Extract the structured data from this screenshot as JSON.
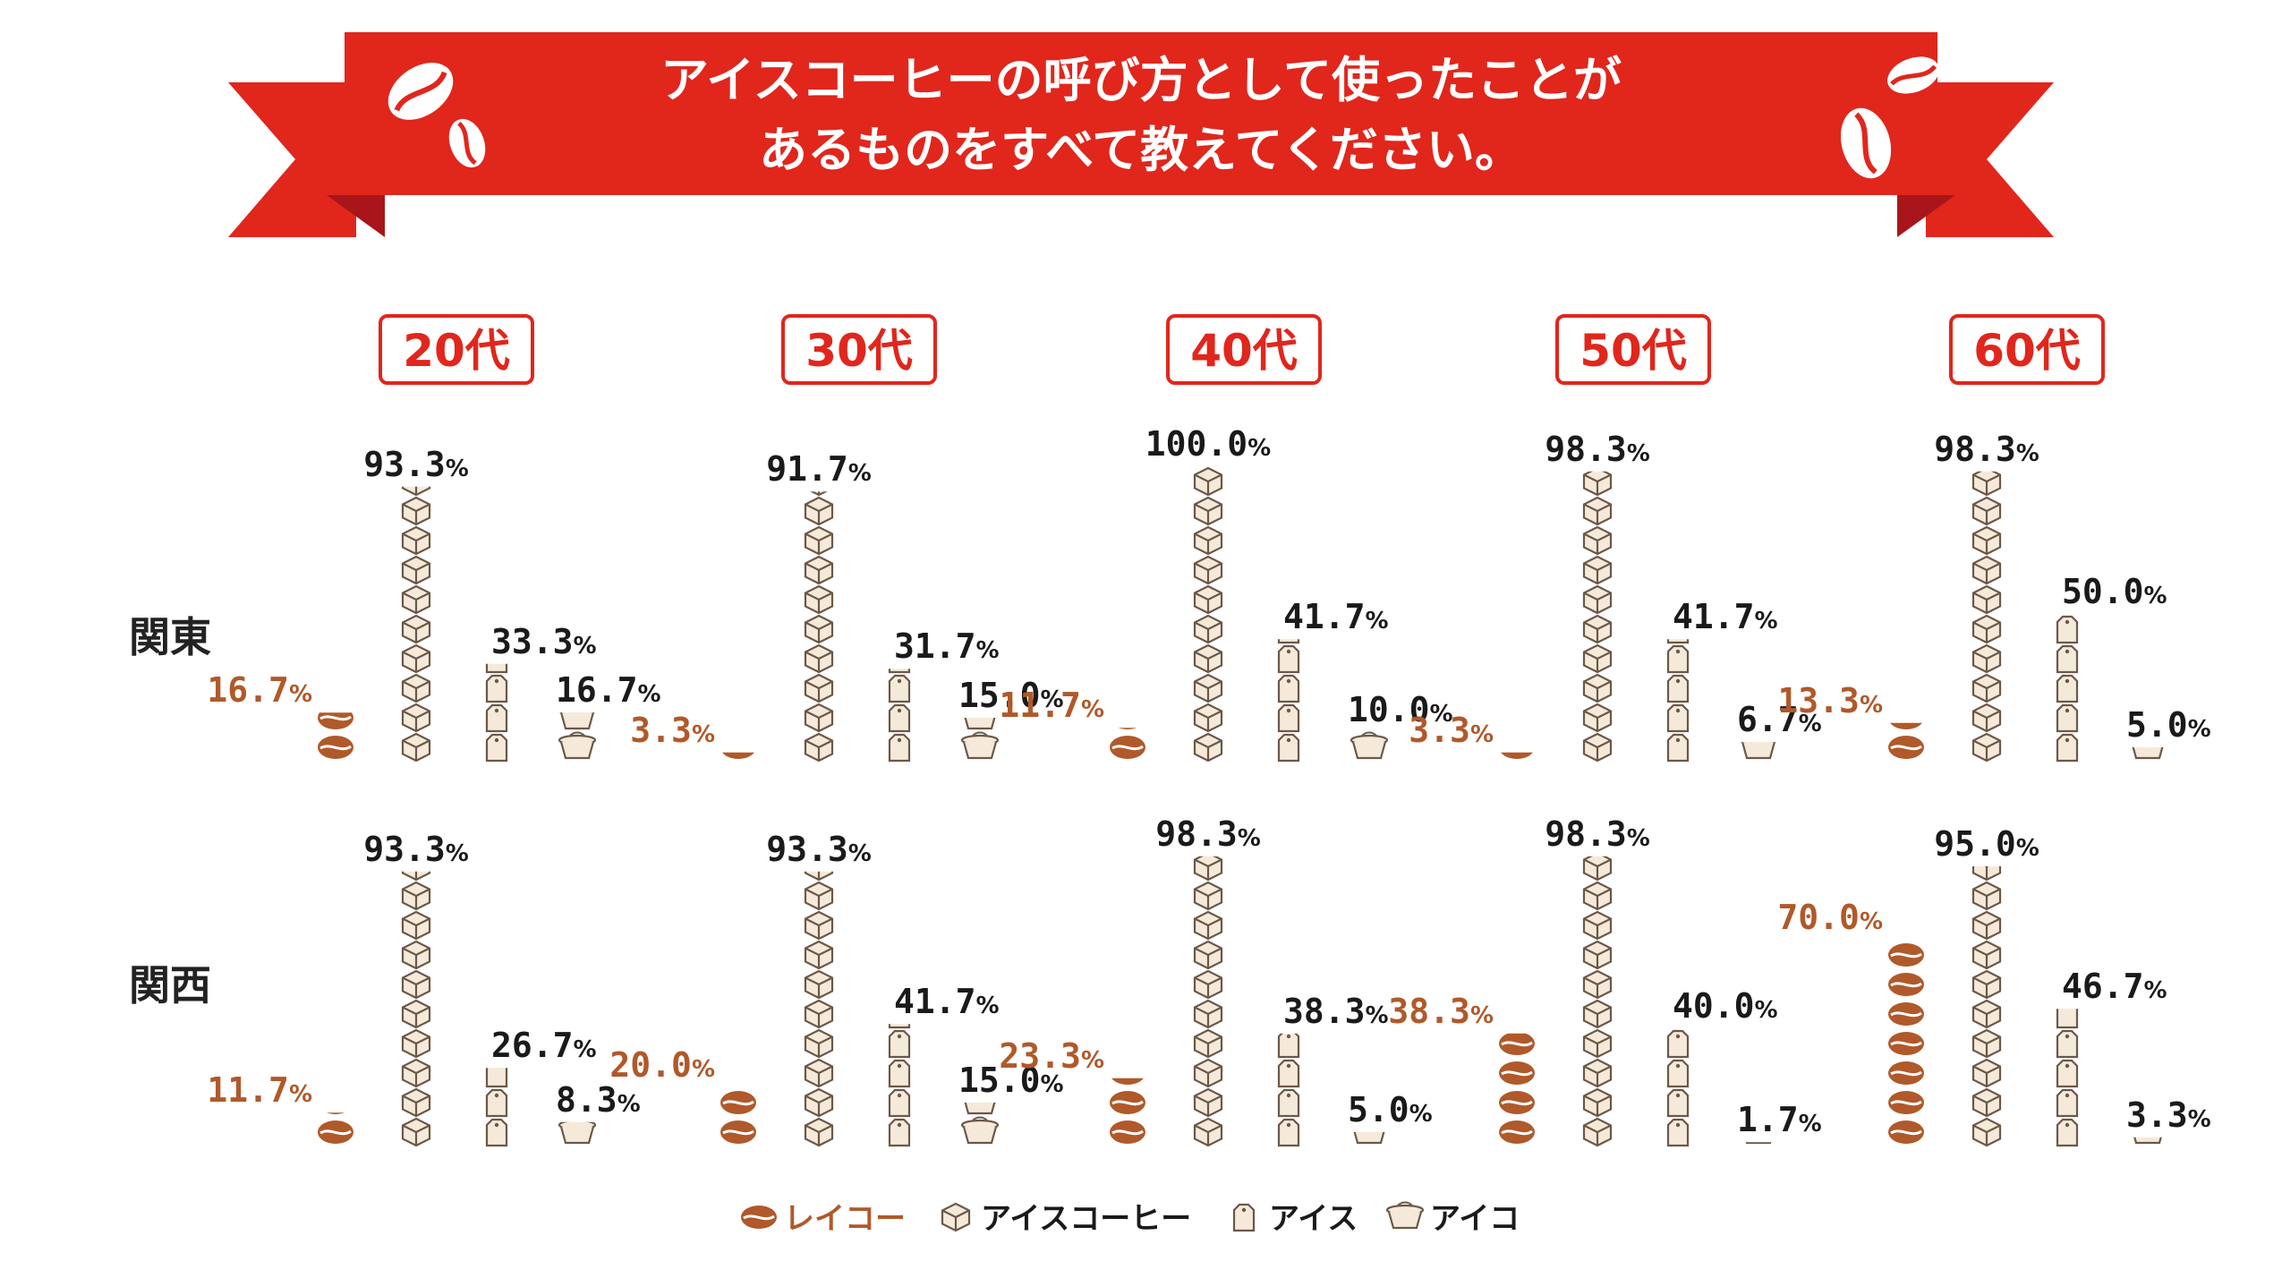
{
  "title": {
    "line1": "アイスコーヒーの呼び方として使ったことが",
    "line2": "あるものをすべて教えてください。"
  },
  "colors": {
    "ribbon": "#e1261c",
    "ribbon_dark": "#a8151a",
    "reiko": "#b0592a",
    "icon_fill": "#f5ead9",
    "icon_stroke": "#6b5848",
    "text": "#1a1a1a"
  },
  "chart_data": {
    "type": "pictograph-bar",
    "title": "アイスコーヒーの呼び方として使ったことがあるものをすべて教えてください。",
    "unit": "%",
    "age_groups": [
      "20代",
      "30代",
      "40代",
      "50代",
      "60代"
    ],
    "regions": [
      "関東",
      "関西"
    ],
    "series": [
      {
        "name": "レイコー",
        "icon": "coffee-bean-icon"
      },
      {
        "name": "アイスコーヒー",
        "icon": "ice-cube-icon"
      },
      {
        "name": "アイス",
        "icon": "tag-icon"
      },
      {
        "name": "アイコ",
        "icon": "creamer-cup-icon"
      }
    ],
    "values": {
      "関東": [
        [
          16.7,
          93.3,
          33.3,
          16.7
        ],
        [
          3.3,
          91.7,
          31.7,
          15.0
        ],
        [
          11.7,
          100.0,
          41.7,
          10.0
        ],
        [
          3.3,
          98.3,
          41.7,
          6.7
        ],
        [
          13.3,
          98.3,
          50.0,
          5.0
        ]
      ],
      "関西": [
        [
          11.7,
          93.3,
          26.7,
          8.3
        ],
        [
          20.0,
          93.3,
          41.7,
          15.0
        ],
        [
          23.3,
          98.3,
          38.3,
          5.0
        ],
        [
          38.3,
          98.3,
          40.0,
          1.7
        ],
        [
          70.0,
          95.0,
          46.7,
          3.3
        ]
      ]
    },
    "value_per_icon": 10
  },
  "legend": {
    "items": [
      {
        "label": "レイコー",
        "icon": "coffee-bean-icon",
        "color": "#b0592a"
      },
      {
        "label": "アイスコーヒー",
        "icon": "ice-cube-icon",
        "color": "#1a1a1a"
      },
      {
        "label": "アイス",
        "icon": "tag-icon",
        "color": "#1a1a1a"
      },
      {
        "label": "アイコ",
        "icon": "creamer-cup-icon",
        "color": "#1a1a1a"
      }
    ]
  }
}
